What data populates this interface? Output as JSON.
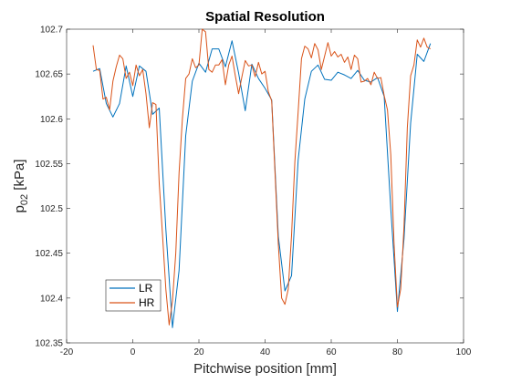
{
  "chart_data": {
    "type": "line",
    "title": "Spatial Resolution",
    "xlabel": "Pitchwise position [mm]",
    "ylabel_main": "p",
    "ylabel_sub": "02",
    "ylabel_unit": " [kPa]",
    "xlim": [
      -20,
      100
    ],
    "ylim": [
      102.35,
      102.7
    ],
    "xticks": [
      -20,
      0,
      20,
      40,
      60,
      80,
      100
    ],
    "xtick_labels": [
      "-20",
      "0",
      "20",
      "40",
      "60",
      "80",
      "100"
    ],
    "yticks": [
      102.35,
      102.4,
      102.45,
      102.5,
      102.55,
      102.6,
      102.65,
      102.7
    ],
    "ytick_labels": [
      "102.35",
      "102.4",
      "102.45",
      "102.5",
      "102.55",
      "102.6",
      "102.65",
      "102.7"
    ],
    "grid": false,
    "legend_position": "bottom-left",
    "series": [
      {
        "name": "LR",
        "color": "#0072BD",
        "x": [
          -12,
          -10,
          -8,
          -6,
          -4,
          -2,
          0,
          2,
          4,
          6,
          8,
          10,
          12,
          14,
          16,
          18,
          20,
          22,
          24,
          26,
          28,
          30,
          32,
          34,
          36,
          38,
          40,
          42,
          44,
          46,
          48,
          50,
          52,
          54,
          56,
          58,
          60,
          62,
          64,
          66,
          68,
          70,
          72,
          74,
          76,
          78,
          80,
          82,
          84,
          86,
          88,
          90
        ],
        "y": [
          102.653,
          102.656,
          102.617,
          102.602,
          102.617,
          102.659,
          102.625,
          102.659,
          102.653,
          102.605,
          102.612,
          102.477,
          102.367,
          102.431,
          102.581,
          102.642,
          102.662,
          102.652,
          102.678,
          102.678,
          102.658,
          102.687,
          102.651,
          102.609,
          102.661,
          102.645,
          102.634,
          102.621,
          102.469,
          102.408,
          102.425,
          102.554,
          102.622,
          102.653,
          102.66,
          102.644,
          102.643,
          102.652,
          102.649,
          102.645,
          102.654,
          102.643,
          102.641,
          102.646,
          102.625,
          102.5,
          102.385,
          102.466,
          102.595,
          102.672,
          102.664,
          102.684
        ]
      },
      {
        "name": "HR",
        "color": "#D95319",
        "x": [
          -12,
          -11,
          -10,
          -9,
          -8,
          -7,
          -6,
          -5,
          -4,
          -3,
          -2,
          -1,
          0,
          1,
          2,
          3,
          4,
          5,
          6,
          7,
          8,
          9,
          10,
          11,
          12,
          13,
          14,
          15,
          16,
          17,
          18,
          19,
          20,
          21,
          22,
          23,
          24,
          25,
          26,
          27,
          28,
          29,
          30,
          31,
          32,
          33,
          34,
          35,
          36,
          37,
          38,
          39,
          40,
          41,
          42,
          43,
          44,
          45,
          46,
          47,
          48,
          49,
          50,
          51,
          52,
          53,
          54,
          55,
          56,
          57,
          58,
          59,
          60,
          61,
          62,
          63,
          64,
          65,
          66,
          67,
          68,
          69,
          70,
          71,
          72,
          73,
          74,
          75,
          76,
          77,
          78,
          79,
          80,
          81,
          82,
          83,
          84,
          85,
          86,
          87,
          88,
          89,
          90
        ],
        "y": [
          102.682,
          102.655,
          102.654,
          102.622,
          102.624,
          102.61,
          102.642,
          102.658,
          102.671,
          102.667,
          102.645,
          102.652,
          102.637,
          102.66,
          102.648,
          102.655,
          102.628,
          102.59,
          102.618,
          102.616,
          102.528,
          102.47,
          102.41,
          102.37,
          102.397,
          102.45,
          102.54,
          102.6,
          102.645,
          102.65,
          102.667,
          102.657,
          102.66,
          102.7,
          102.697,
          102.655,
          102.652,
          102.66,
          102.66,
          102.666,
          102.638,
          102.66,
          102.67,
          102.648,
          102.628,
          102.647,
          102.665,
          102.659,
          102.66,
          102.647,
          102.663,
          102.65,
          102.653,
          102.63,
          102.62,
          102.54,
          102.46,
          102.4,
          102.393,
          102.41,
          102.47,
          102.552,
          102.608,
          102.667,
          102.681,
          102.678,
          102.668,
          102.684,
          102.677,
          102.655,
          102.67,
          102.685,
          102.67,
          102.675,
          102.669,
          102.672,
          102.663,
          102.669,
          102.655,
          102.671,
          102.667,
          102.641,
          102.642,
          102.645,
          102.638,
          102.652,
          102.645,
          102.646,
          102.626,
          102.61,
          102.56,
          102.46,
          102.39,
          102.41,
          102.48,
          102.59,
          102.648,
          102.66,
          102.688,
          102.68,
          102.69,
          102.68,
          102.678
        ]
      }
    ]
  }
}
